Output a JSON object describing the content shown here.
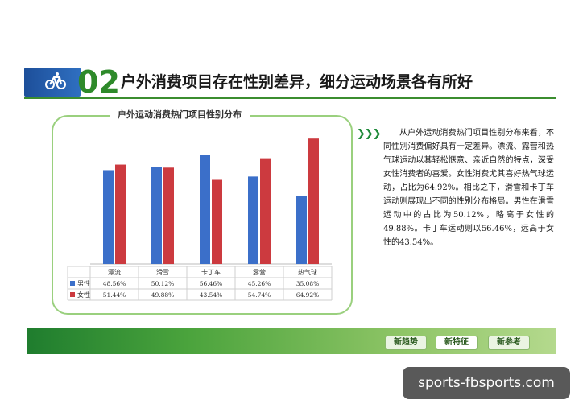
{
  "header": {
    "number": "02",
    "title": "户外消费项目存在性别差异，细分运动场景各有所好",
    "icon": "bicycle-icon"
  },
  "chart_data": {
    "type": "bar",
    "title": "户外运动消费热门项目性别分布",
    "categories": [
      "漂流",
      "滑雪",
      "卡丁车",
      "露营",
      "热气球"
    ],
    "series": [
      {
        "name": "男性",
        "color": "#3b6fc9",
        "values": [
          48.56,
          50.12,
          56.46,
          45.26,
          35.08
        ],
        "labels": [
          "48.56%",
          "50.12%",
          "56.46%",
          "45.26%",
          "35.08%"
        ]
      },
      {
        "name": "女性",
        "color": "#cc3a3f",
        "values": [
          51.44,
          49.88,
          43.54,
          54.74,
          64.92
        ],
        "labels": [
          "51.44%",
          "49.88%",
          "43.54%",
          "54.74%",
          "64.92%"
        ]
      }
    ],
    "ylim": [
      0,
      70
    ],
    "grid": false,
    "legend": "data-table"
  },
  "description": "从户外运动消费热门项目性别分布来看，不同性别消费偏好具有一定差异。漂流、露营和热气球运动以其轻松惬意、亲近自然的特点，深受女性消费者的喜爱。女性消费尤其喜好热气球运动，占比为64.92%。相比之下，滑雪和卡丁车运动则展现出不同的性别分布格局。男性在滑雪运动中的占比为50.12%，略高于女性的49.88%。卡丁车运动则以56.46%，远高于女性的43.54%。",
  "arrow": "❯❯❯",
  "footer": {
    "buttons": [
      "新趋势",
      "新特征",
      "新参考"
    ],
    "active_index": 1
  },
  "watermark": "sports-fbsports.com"
}
